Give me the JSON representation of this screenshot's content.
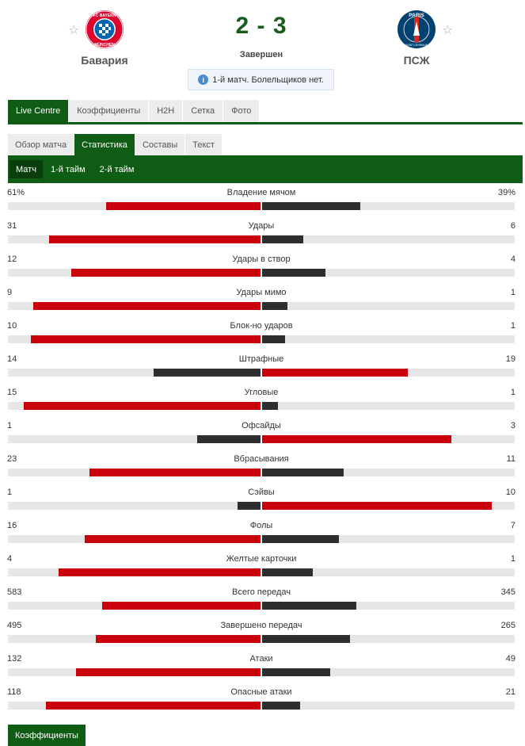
{
  "match": {
    "home": {
      "name": "Бавария",
      "logo_text_top": "FC BAYERN",
      "logo_text_bottom": "MÜNCHEN"
    },
    "away": {
      "name": "ПСЖ",
      "logo_text_top": "PARIS",
      "logo_text_bottom": "SAINT-GERMAIN"
    },
    "score": "2 - 3",
    "status": "Завершен",
    "info": "1-й матч. Болельщиков нет."
  },
  "tabs": [
    "Live Centre",
    "Коэффициенты",
    "H2H",
    "Сетка",
    "Фото"
  ],
  "active_tab": 0,
  "subtabs": [
    "Обзор матча",
    "Статистика",
    "Составы",
    "Текст"
  ],
  "active_subtab": 1,
  "periods": [
    "Матч",
    "1-й тайм",
    "2-й тайм"
  ],
  "active_period": 0,
  "colors": {
    "green": "#0f5c14",
    "red": "#c8000c",
    "dark": "#2e2e2e",
    "track": "#e6e6e6"
  },
  "stats": [
    {
      "name": "Владение мячом",
      "home": "61%",
      "away": "39%",
      "home_val": 61,
      "away_val": 39
    },
    {
      "name": "Удары",
      "home": "31",
      "away": "6",
      "home_val": 31,
      "away_val": 6
    },
    {
      "name": "Удары в створ",
      "home": "12",
      "away": "4",
      "home_val": 12,
      "away_val": 4
    },
    {
      "name": "Удары мимо",
      "home": "9",
      "away": "1",
      "home_val": 9,
      "away_val": 1
    },
    {
      "name": "Блок-но ударов",
      "home": "10",
      "away": "1",
      "home_val": 10,
      "away_val": 1
    },
    {
      "name": "Штрафные",
      "home": "14",
      "away": "19",
      "home_val": 14,
      "away_val": 19
    },
    {
      "name": "Угловые",
      "home": "15",
      "away": "1",
      "home_val": 15,
      "away_val": 1
    },
    {
      "name": "Офсайды",
      "home": "1",
      "away": "3",
      "home_val": 1,
      "away_val": 3
    },
    {
      "name": "Вбрасывания",
      "home": "23",
      "away": "11",
      "home_val": 23,
      "away_val": 11
    },
    {
      "name": "Сэйвы",
      "home": "1",
      "away": "10",
      "home_val": 1,
      "away_val": 10
    },
    {
      "name": "Фолы",
      "home": "16",
      "away": "7",
      "home_val": 16,
      "away_val": 7
    },
    {
      "name": "Желтые карточки",
      "home": "4",
      "away": "1",
      "home_val": 4,
      "away_val": 1
    },
    {
      "name": "Всего передач",
      "home": "583",
      "away": "345",
      "home_val": 583,
      "away_val": 345
    },
    {
      "name": "Завершено передач",
      "home": "495",
      "away": "265",
      "home_val": 495,
      "away_val": 265
    },
    {
      "name": "Атаки",
      "home": "132",
      "away": "49",
      "home_val": 132,
      "away_val": 49
    },
    {
      "name": "Опасные атаки",
      "home": "118",
      "away": "21",
      "home_val": 118,
      "away_val": 21
    }
  ],
  "footer_button": "Коэффициенты"
}
